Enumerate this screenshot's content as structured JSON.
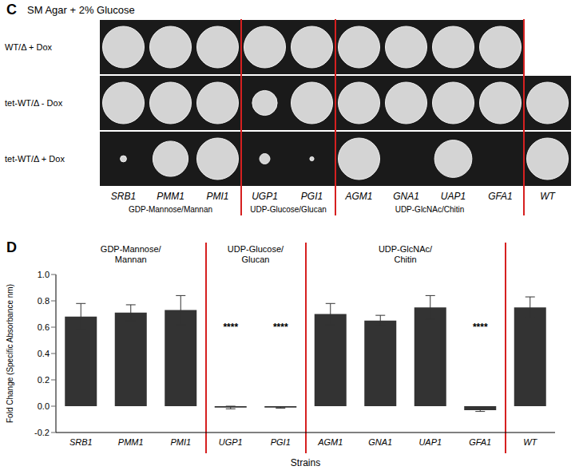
{
  "panel_c": {
    "letter": "C",
    "title": "SM Agar + 2% Glucose",
    "columns": [
      "SRB1",
      "PMM1",
      "PMI1",
      "UGP1",
      "PGI1",
      "AGM1",
      "GNA1",
      "UAP1",
      "GFA1",
      "WT"
    ],
    "groups": [
      {
        "label": "GDP-Mannose/Mannan",
        "columns": [
          "SRB1",
          "PMM1",
          "PMI1"
        ]
      },
      {
        "label": "UDP-Glucose/Glucan",
        "columns": [
          "UGP1",
          "PGI1"
        ]
      },
      {
        "label": "UDP-GlcNAc/Chitin",
        "columns": [
          "AGM1",
          "GNA1",
          "UAP1",
          "GFA1"
        ]
      }
    ],
    "rows": [
      {
        "label": "WT/Δ + Dox",
        "colony_size": [
          1,
          1,
          1,
          1,
          1,
          1,
          1,
          1,
          1,
          null
        ]
      },
      {
        "label": "tet-WT/Δ - Dox",
        "colony_size": [
          1,
          1,
          1,
          0.6,
          1,
          1,
          1,
          1,
          1,
          1
        ]
      },
      {
        "label": "tet-WT/Δ + Dox",
        "colony_size": [
          0.15,
          0.85,
          1,
          0.25,
          0.1,
          1,
          0,
          0.9,
          0,
          1
        ]
      }
    ]
  },
  "chart_data": {
    "letter": "D",
    "type": "bar",
    "categories": [
      "SRB1",
      "PMM1",
      "PMI1",
      "UGP1",
      "PGI1",
      "AGM1",
      "GNA1",
      "UAP1",
      "GFA1",
      "WT"
    ],
    "values": [
      0.68,
      0.71,
      0.73,
      -0.01,
      -0.01,
      0.7,
      0.65,
      0.75,
      -0.03,
      0.75
    ],
    "errors": [
      0.1,
      0.06,
      0.11,
      0.01,
      0.005,
      0.08,
      0.04,
      0.09,
      0.01,
      0.08
    ],
    "color": "#333333",
    "ylabel": "Fold Change (Specific Absorbance nm)",
    "xlabel": "Strains",
    "ylim": [
      -0.2,
      1.0
    ],
    "yticks": [
      {
        "value": -0.2,
        "label": "-0.2"
      },
      {
        "value": 0,
        "label": "0.0"
      },
      {
        "value": 0.2,
        "label": "0.2"
      },
      {
        "value": 0.4,
        "label": "0.4"
      },
      {
        "value": 0.6,
        "label": "0.6"
      },
      {
        "value": 0.8,
        "label": "0.8"
      },
      {
        "value": 1.0,
        "label": "1.0"
      }
    ],
    "groups": [
      {
        "label": "GDP-Mannose/Mannan",
        "categories": [
          "SRB1",
          "PMM1",
          "PMI1"
        ]
      },
      {
        "label": "UDP-Glucose/Glucan",
        "categories": [
          "UGP1",
          "PGI1"
        ]
      },
      {
        "label": "UDP-GlcNAc/Chitin",
        "categories": [
          "AGM1",
          "GNA1",
          "UAP1",
          "GFA1"
        ]
      }
    ],
    "annotations": [
      {
        "text": "****",
        "categories": [
          "UGP1",
          "PGI1",
          "GFA1"
        ]
      }
    ]
  }
}
